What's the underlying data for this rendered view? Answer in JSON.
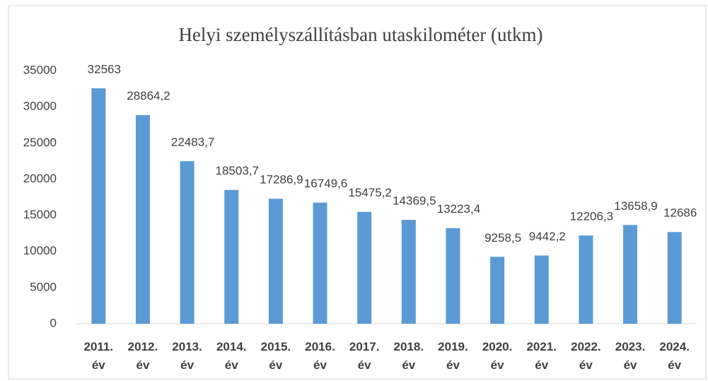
{
  "chart_data": {
    "type": "bar",
    "title": "Helyi személyszállításban utaskilométer (utkm)",
    "categories": [
      "2011. év",
      "2012. év",
      "2013. év",
      "2014. év",
      "2015. év",
      "2016. év",
      "2017. év",
      "2018. év",
      "2019. év",
      "2020. év",
      "2021. év",
      "2022. év",
      "2023. év",
      "2024. év"
    ],
    "values": [
      32563,
      28864.2,
      22483.7,
      18503.7,
      17286.9,
      16749.6,
      15475.2,
      14369.5,
      13223.4,
      9258.5,
      9442.2,
      12206.3,
      13658.9,
      12686
    ],
    "value_labels": [
      "32563",
      "28864,2",
      "22483,7",
      "18503,7",
      "17286,9",
      "16749,6",
      "15475,2",
      "14369,5",
      "13223,4",
      "9258,5",
      "9442,2",
      "12206,3",
      "13658,9",
      "12686"
    ],
    "color": "#5b9bd5",
    "ylim": [
      0,
      35000
    ],
    "yticks": [
      0,
      5000,
      10000,
      15000,
      20000,
      25000,
      30000,
      35000
    ],
    "grid": false
  }
}
